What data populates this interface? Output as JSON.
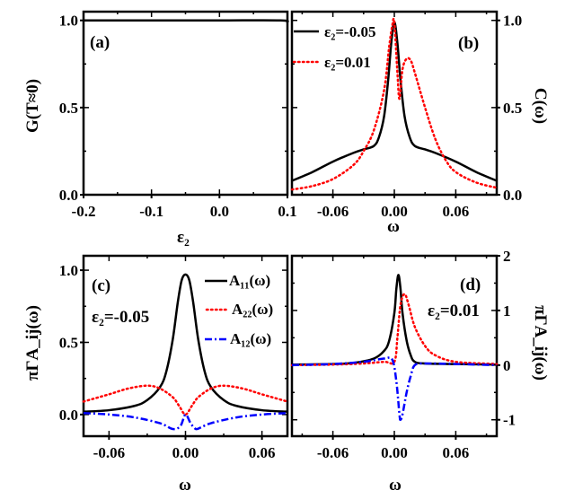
{
  "chart_data": [
    {
      "id": "a",
      "type": "line",
      "panel_label": "(a)",
      "xlabel": "ε₂",
      "ylabel": "G(T≈0)",
      "xlim": [
        -0.2,
        0.1
      ],
      "ylim": [
        0.0,
        1.05
      ],
      "xticks": [
        -0.2,
        -0.1,
        0.0,
        0.1
      ],
      "xtick_labels": [
        "-0.2",
        "-0.1",
        "0.0",
        "0.1"
      ],
      "yticks": [
        0.0,
        0.5,
        1.0
      ],
      "ytick_labels": [
        "0.0",
        "0.5",
        "1.0"
      ],
      "y_axis_side": "left",
      "series": [
        {
          "name": "G",
          "color": "#000000",
          "style": "solid",
          "x": [
            -0.2,
            -0.1,
            0.0,
            0.09,
            0.1
          ],
          "y": [
            1.0,
            1.0,
            1.0,
            1.0,
            0.99
          ]
        }
      ]
    },
    {
      "id": "b",
      "type": "line",
      "panel_label": "(b)",
      "xlabel": "ω",
      "ylabel": "C(ω)",
      "xlim": [
        -0.1,
        0.1
      ],
      "ylim": [
        0.0,
        1.05
      ],
      "xticks": [
        -0.06,
        0.0,
        0.06
      ],
      "xtick_labels": [
        "-0.06",
        "0.00",
        "0.06"
      ],
      "yticks": [
        0.0,
        0.5,
        1.0
      ],
      "ytick_labels": [
        "0.0",
        "0.5",
        "1.0"
      ],
      "y_axis_side": "right",
      "legend_position": "top-left",
      "series": [
        {
          "name": "ε₂=-0.05",
          "color": "#000000",
          "style": "solid",
          "x": [
            -0.1,
            -0.08,
            -0.06,
            -0.04,
            -0.03,
            -0.02,
            -0.015,
            -0.01,
            -0.006,
            -0.003,
            0.0,
            0.003,
            0.006,
            0.01,
            0.015,
            0.02,
            0.03,
            0.04,
            0.06,
            0.08,
            0.1
          ],
          "y": [
            0.08,
            0.13,
            0.19,
            0.24,
            0.26,
            0.28,
            0.33,
            0.45,
            0.66,
            0.87,
            0.99,
            0.87,
            0.66,
            0.45,
            0.33,
            0.28,
            0.26,
            0.24,
            0.19,
            0.13,
            0.08
          ]
        },
        {
          "name": "ε₂=0.01",
          "color": "#ff0000",
          "style": "dotted",
          "x": [
            -0.1,
            -0.08,
            -0.06,
            -0.04,
            -0.03,
            -0.02,
            -0.01,
            -0.005,
            -0.002,
            0.0,
            0.003,
            0.005,
            0.008,
            0.012,
            0.016,
            0.02,
            0.03,
            0.04,
            0.05,
            0.06,
            0.08,
            0.1
          ],
          "y": [
            0.03,
            0.05,
            0.09,
            0.17,
            0.25,
            0.37,
            0.6,
            0.85,
            0.97,
            0.99,
            0.7,
            0.55,
            0.72,
            0.78,
            0.77,
            0.7,
            0.5,
            0.32,
            0.2,
            0.13,
            0.07,
            0.04
          ]
        }
      ]
    },
    {
      "id": "c",
      "type": "line",
      "panel_label": "(c)",
      "annotation": "ε₂=-0.05",
      "xlabel": "ω",
      "ylabel": "πΓA_ij(ω)",
      "xlim": [
        -0.08,
        0.08
      ],
      "ylim": [
        -0.15,
        1.1
      ],
      "xticks": [
        -0.06,
        0.0,
        0.06
      ],
      "xtick_labels": [
        "-0.06",
        "0.00",
        "0.06"
      ],
      "yticks": [
        0.0,
        0.5,
        1.0
      ],
      "ytick_labels": [
        "0.0",
        "0.5",
        "1.0"
      ],
      "y_axis_side": "left",
      "legend_position": "top-right",
      "series": [
        {
          "name": "A₁₁(ω)",
          "color": "#000000",
          "style": "solid",
          "x": [
            -0.08,
            -0.06,
            -0.04,
            -0.03,
            -0.02,
            -0.015,
            -0.01,
            -0.006,
            -0.003,
            0.0,
            0.003,
            0.006,
            0.01,
            0.015,
            0.02,
            0.03,
            0.04,
            0.06,
            0.08
          ],
          "y": [
            0.02,
            0.03,
            0.06,
            0.1,
            0.19,
            0.3,
            0.52,
            0.78,
            0.93,
            0.97,
            0.93,
            0.78,
            0.52,
            0.3,
            0.19,
            0.1,
            0.06,
            0.03,
            0.02
          ]
        },
        {
          "name": "A₂₂(ω)",
          "color": "#ff0000",
          "style": "dotted",
          "x": [
            -0.08,
            -0.06,
            -0.045,
            -0.03,
            -0.02,
            -0.01,
            -0.005,
            0.0,
            0.005,
            0.01,
            0.02,
            0.03,
            0.045,
            0.06,
            0.08
          ],
          "y": [
            0.09,
            0.14,
            0.18,
            0.2,
            0.18,
            0.12,
            0.06,
            0.0,
            0.06,
            0.12,
            0.18,
            0.2,
            0.18,
            0.14,
            0.09
          ]
        },
        {
          "name": "A₁₂(ω)",
          "color": "#0000ff",
          "style": "dashdot",
          "x": [
            -0.08,
            -0.06,
            -0.04,
            -0.02,
            -0.01,
            -0.004,
            0.0,
            0.004,
            0.008,
            0.012,
            0.02,
            0.04,
            0.06,
            0.08
          ],
          "y": [
            0.01,
            0.0,
            -0.02,
            -0.06,
            -0.1,
            -0.08,
            0.0,
            -0.06,
            -0.1,
            -0.09,
            -0.06,
            -0.02,
            0.0,
            0.01
          ]
        }
      ]
    },
    {
      "id": "d",
      "type": "line",
      "panel_label": "(d)",
      "annotation": "ε₂=0.01",
      "xlabel": "ω",
      "ylabel": "πΓA_ij(ω)",
      "xlim": [
        -0.1,
        0.1
      ],
      "ylim": [
        -1.3,
        2.0
      ],
      "xticks": [
        -0.06,
        0.0,
        0.06
      ],
      "xtick_labels": [
        "-0.06",
        "0.00",
        "0.06"
      ],
      "yticks": [
        -1,
        0,
        1,
        2
      ],
      "ytick_labels": [
        "-1",
        "0",
        "1",
        "2"
      ],
      "y_axis_side": "right",
      "series": [
        {
          "name": "A₁₁(ω)",
          "color": "#000000",
          "style": "solid",
          "x": [
            -0.1,
            -0.06,
            -0.04,
            -0.02,
            -0.01,
            -0.005,
            0.0,
            0.002,
            0.004,
            0.006,
            0.008,
            0.012,
            0.016,
            0.02,
            0.03,
            0.06,
            0.1
          ],
          "y": [
            0.01,
            0.02,
            0.04,
            0.12,
            0.26,
            0.45,
            0.95,
            1.4,
            1.65,
            1.4,
            0.95,
            0.45,
            0.18,
            0.06,
            0.03,
            0.02,
            0.01
          ]
        },
        {
          "name": "A₂₂(ω)",
          "color": "#ff0000",
          "style": "dotted",
          "x": [
            -0.1,
            -0.06,
            -0.03,
            -0.01,
            0.0,
            0.003,
            0.006,
            0.01,
            0.014,
            0.02,
            0.03,
            0.04,
            0.06,
            0.1
          ],
          "y": [
            0.0,
            0.01,
            0.03,
            0.06,
            0.06,
            0.5,
            1.1,
            1.3,
            1.1,
            0.7,
            0.35,
            0.18,
            0.06,
            0.02
          ]
        },
        {
          "name": "A₁₂(ω)",
          "color": "#0000ff",
          "style": "dashdot",
          "x": [
            -0.1,
            -0.06,
            -0.03,
            -0.01,
            -0.002,
            0.002,
            0.005,
            0.006,
            0.008,
            0.012,
            0.016,
            0.02,
            0.03,
            0.06,
            0.1
          ],
          "y": [
            0.0,
            0.02,
            0.06,
            0.12,
            0.1,
            -0.3,
            -0.9,
            -1.0,
            -0.9,
            -0.5,
            -0.2,
            0.0,
            0.03,
            0.02,
            0.0
          ]
        }
      ]
    }
  ],
  "legends": {
    "b": [
      "ε₂=-0.05",
      "ε₂=0.01"
    ],
    "c": [
      "A₁₁(ω)",
      "A₂₂(ω)",
      "A₁₂(ω)"
    ]
  }
}
